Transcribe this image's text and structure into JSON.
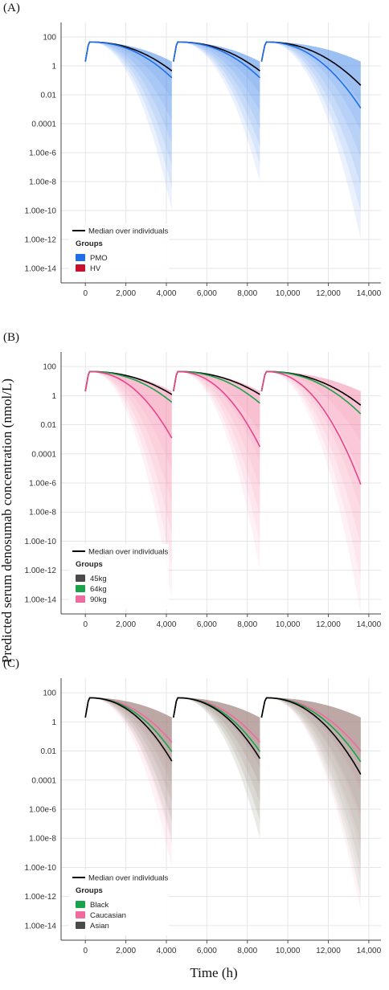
{
  "figure": {
    "ylabel": "Predicted serum denosumab concentration (nmol/L)",
    "xlabel": "Time (h)"
  },
  "chart_data": [
    {
      "type": "area",
      "panel_label": "(A)",
      "yscale": "log",
      "ylim": [
        1e-15,
        1000
      ],
      "xlim": [
        -1200,
        14600
      ],
      "yticks": [
        "100",
        "1",
        "0.01",
        "0.0001",
        "1.00e-6",
        "1.00e-8",
        "1.00e-10",
        "1.00e-12",
        "1.00e-14"
      ],
      "xticks": [
        "0",
        "2,000",
        "4,000",
        "6,000",
        "8,000",
        "10,000",
        "12,000",
        "14,000"
      ],
      "grid": true,
      "legend": {
        "placement": "bottom-left",
        "median_label": "Median over individuals",
        "groups_title": "Groups"
      },
      "band_base_color": "#1f6fe8",
      "series": [
        {
          "name": "PMO",
          "color": "#1f6fe8",
          "band_lower_end": [
            1e-10,
            1e-08,
            1e-12
          ]
        },
        {
          "name": "HV",
          "color": "#c8102e",
          "band_lower_end": []
        }
      ],
      "median_lines": [
        {
          "color": "#000000",
          "end_values": [
            0.45,
            0.45,
            0.045
          ]
        },
        {
          "color": "#1f6fe8",
          "end_values": [
            0.15,
            0.15,
            0.0012
          ]
        }
      ]
    },
    {
      "type": "area",
      "panel_label": "(B)",
      "yscale": "log",
      "ylim": [
        1e-15,
        1000
      ],
      "xlim": [
        -1200,
        14600
      ],
      "yticks": [
        "100",
        "1",
        "0.01",
        "0.0001",
        "1.00e-6",
        "1.00e-8",
        "1.00e-10",
        "1.00e-12",
        "1.00e-14"
      ],
      "xticks": [
        "0",
        "2,000",
        "4,000",
        "6,000",
        "8,000",
        "10,000",
        "12,000",
        "14,000"
      ],
      "grid": true,
      "legend": {
        "placement": "bottom-left",
        "median_label": "Median over individuals",
        "groups_title": "Groups"
      },
      "band_base_color": "#f06aa0",
      "series": [
        {
          "name": "45kg",
          "color": "#4a4a4a",
          "band_lower_end": []
        },
        {
          "name": "64kg",
          "color": "#1aa34a",
          "band_lower_end": []
        },
        {
          "name": "90kg",
          "color": "#f06aa0",
          "band_lower_end": [
            1e-14,
            1e-12,
            1e-15
          ]
        }
      ],
      "median_lines": [
        {
          "color": "#000000",
          "end_values": [
            1.2,
            1.2,
            0.22
          ]
        },
        {
          "color": "#1aa34a",
          "end_values": [
            0.35,
            0.3,
            0.055
          ]
        },
        {
          "color": "#e8458c",
          "end_values": [
            0.0012,
            0.0003,
            8e-07
          ]
        }
      ]
    },
    {
      "type": "area",
      "panel_label": "(C)",
      "yscale": "log",
      "ylim": [
        1e-15,
        1000
      ],
      "xlim": [
        -1200,
        14600
      ],
      "yticks": [
        "100",
        "1",
        "0.01",
        "0.0001",
        "1.00e-6",
        "1.00e-8",
        "1.00e-10",
        "1.00e-12",
        "1.00e-14"
      ],
      "xticks": [
        "0",
        "2,000",
        "4,000",
        "6,000",
        "8,000",
        "10,000",
        "12,000",
        "14,000"
      ],
      "grid": true,
      "legend": {
        "placement": "bottom-left",
        "median_label": "Median over individuals",
        "groups_title": "Groups"
      },
      "band_base_color": "#f06aa0",
      "series": [
        {
          "name": "Black",
          "color": "#1aa34a",
          "band_lower_end": [
            1e-08,
            1e-08,
            1e-12
          ]
        },
        {
          "name": "Caucasian",
          "color": "#f06aa0",
          "band_lower_end": [
            1e-10,
            1e-08,
            1e-13
          ]
        },
        {
          "name": "Asian",
          "color": "#4a4a4a",
          "band_lower_end": []
        }
      ],
      "median_lines": [
        {
          "color": "#f06aa0",
          "end_values": [
            0.04,
            0.04,
            0.01
          ]
        },
        {
          "color": "#1aa34a",
          "end_values": [
            0.009,
            0.009,
            0.0018
          ]
        },
        {
          "color": "#000000",
          "end_values": [
            0.002,
            0.003,
            0.00025
          ]
        }
      ]
    }
  ]
}
